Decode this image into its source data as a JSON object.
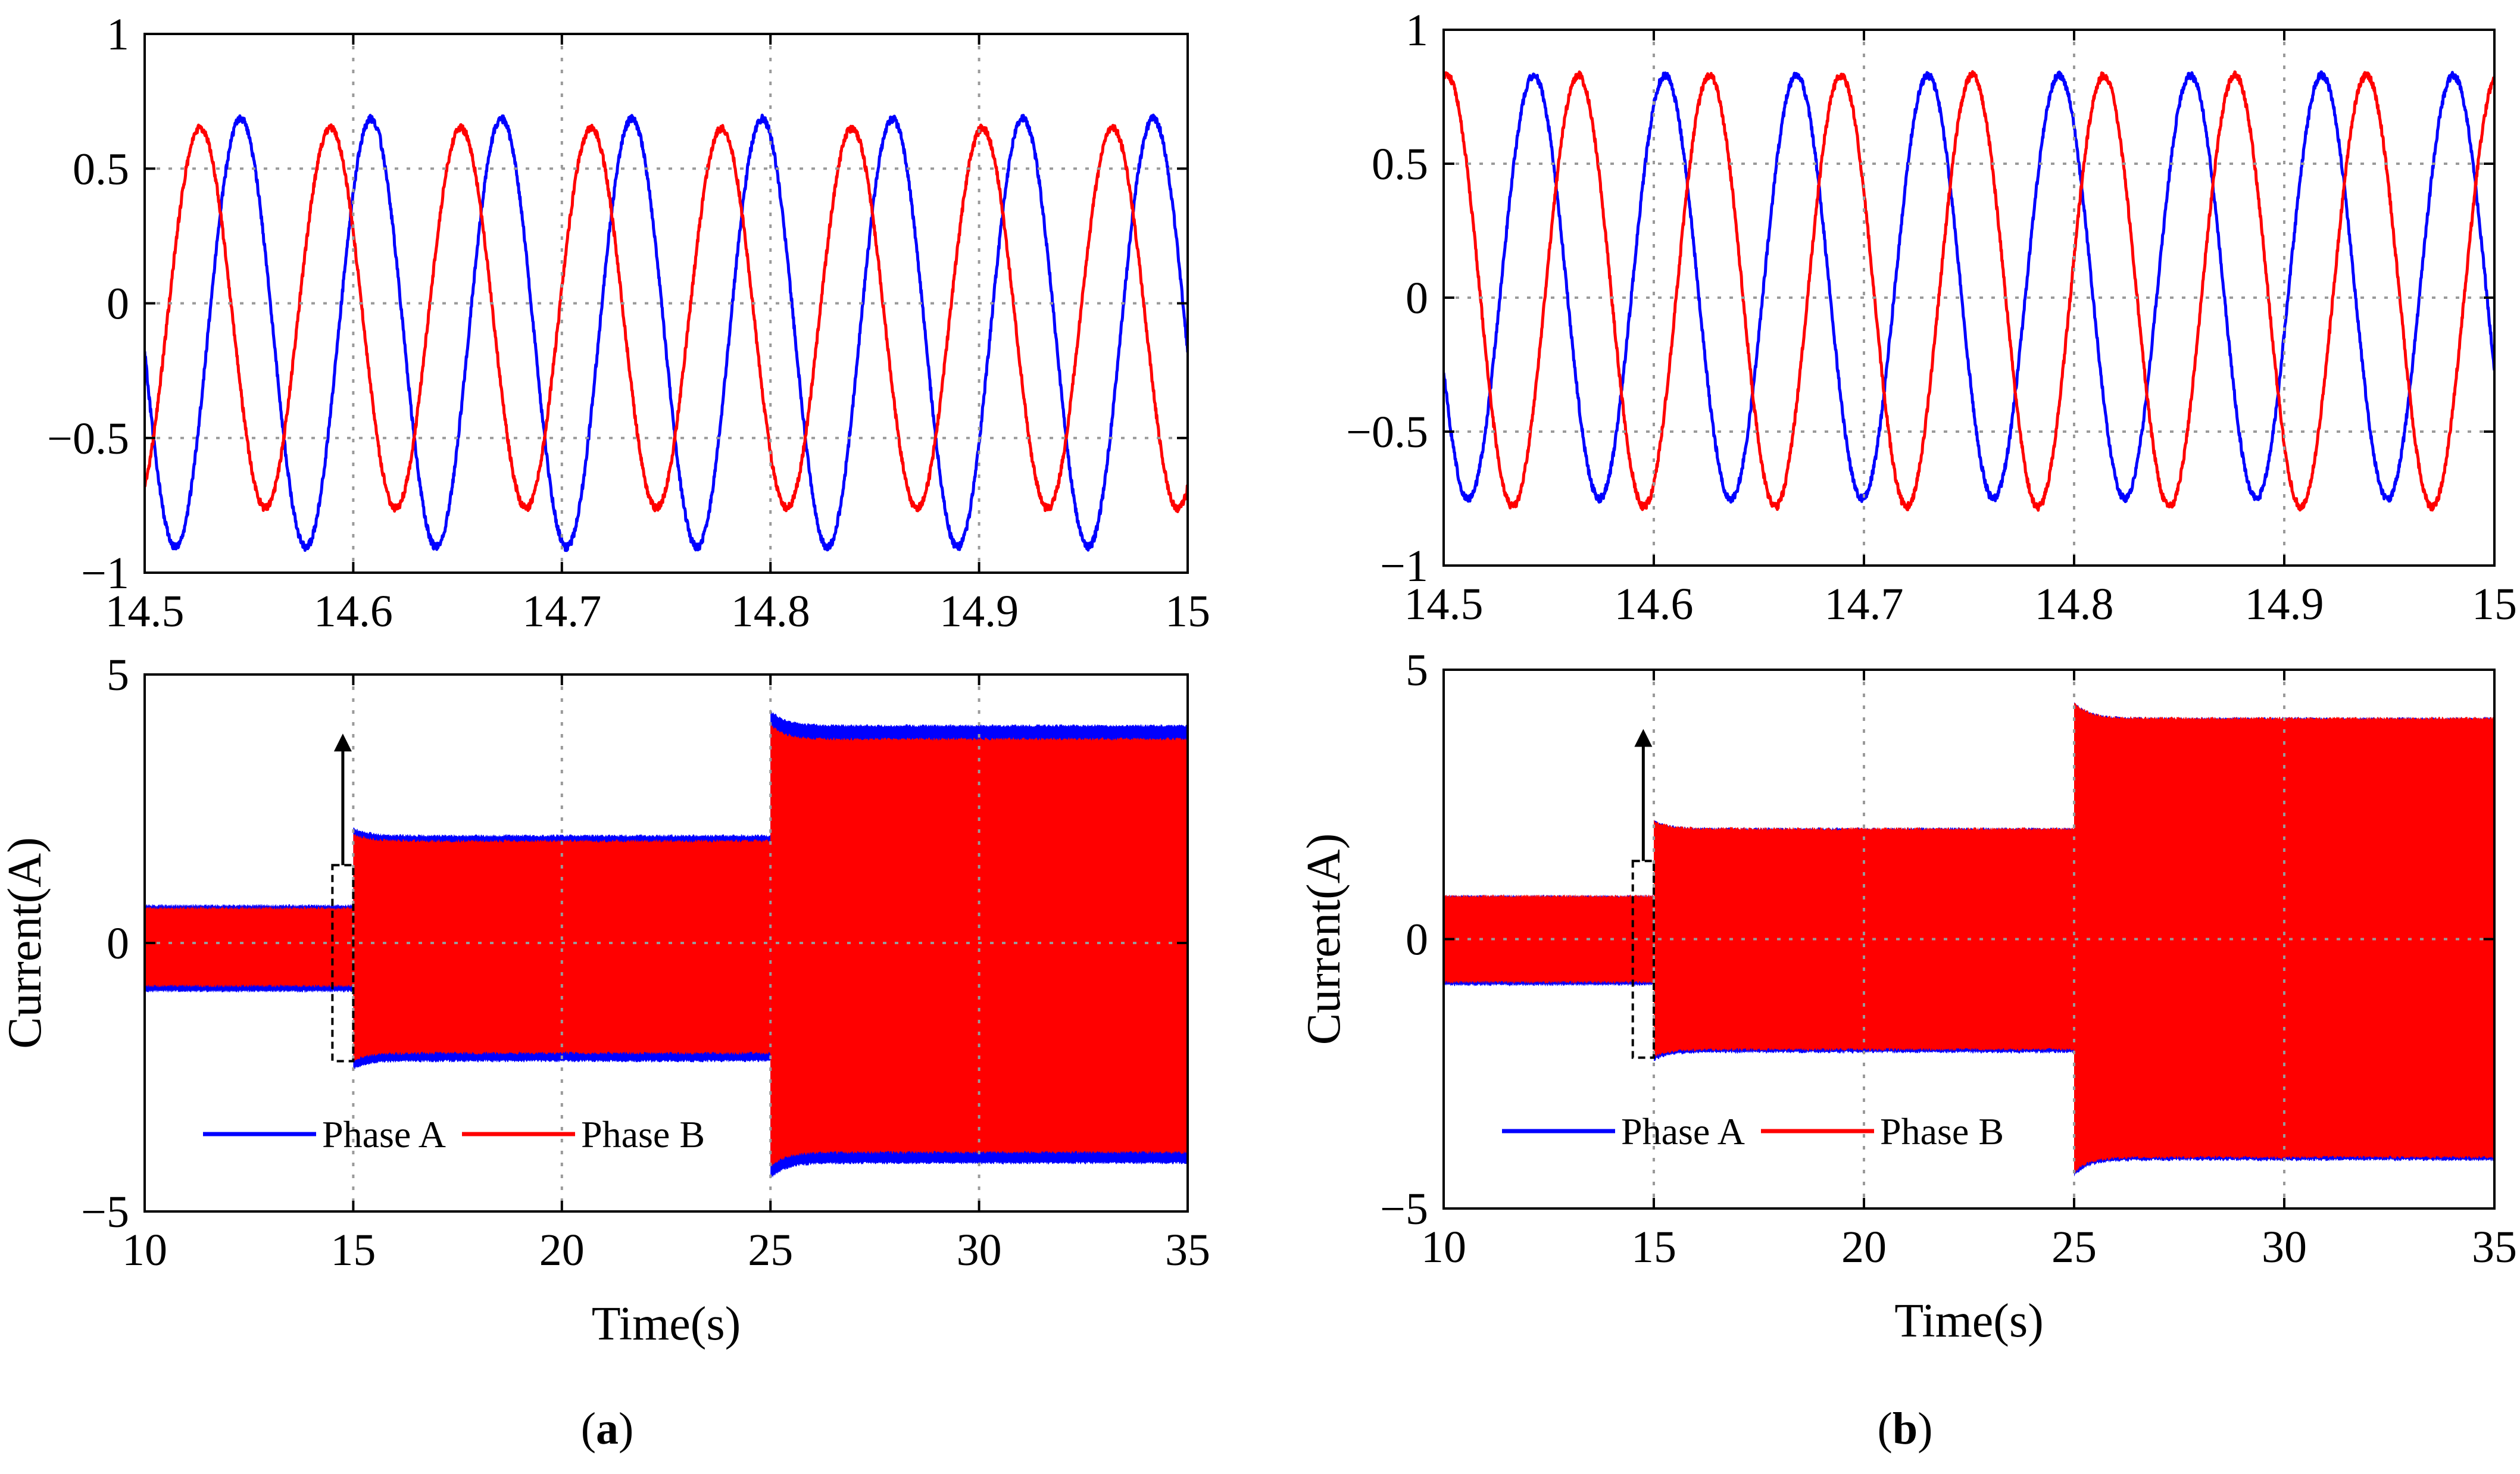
{
  "colors": {
    "phase_a": "#0000ff",
    "phase_b": "#ff0000"
  },
  "chart_data": [
    {
      "type": "line",
      "panel": "a",
      "subplot": "zoom",
      "title": "",
      "xlabel": "",
      "ylabel": "",
      "xlim": [
        14.5,
        15
      ],
      "ylim": [
        -1,
        1
      ],
      "xticks": [
        14.5,
        14.6,
        14.7,
        14.8,
        14.9,
        15
      ],
      "xtick_labels": [
        "14.5",
        "14.6",
        "14.7",
        "14.8",
        "14.9",
        "15"
      ],
      "yticks": [
        1,
        0.5,
        0,
        -0.5,
        -1
      ],
      "ytick_labels": [
        "1",
        "0.5",
        "0",
        "−0.5",
        "−1"
      ],
      "grid": true,
      "series": [
        {
          "name": "Phase A",
          "color": "#0000ff",
          "kind": "sine",
          "frequency_hz": 16,
          "offset": -0.11,
          "amplitude": 0.795,
          "phase_deg": 185
        },
        {
          "name": "Phase B",
          "color": "#ff0000",
          "kind": "sine",
          "frequency_hz": 16,
          "offset": -0.055,
          "amplitude": 0.705,
          "phase_deg": 297
        }
      ]
    },
    {
      "type": "area",
      "panel": "a",
      "subplot": "full",
      "title": "",
      "xlabel": "Time(s)",
      "ylabel": "Current(A)",
      "xlim": [
        10,
        35
      ],
      "ylim": [
        -5,
        5
      ],
      "xticks": [
        10,
        15,
        20,
        25,
        30,
        35
      ],
      "xtick_labels": [
        "10",
        "15",
        "20",
        "25",
        "30",
        "35"
      ],
      "yticks": [
        5,
        0,
        -5
      ],
      "ytick_labels": [
        "5",
        "0",
        "−5"
      ],
      "grid": true,
      "series": [
        {
          "name": "Phase A",
          "color": "#0000ff",
          "segments": [
            {
              "t": [
                10,
                15
              ],
              "upper": 0.7,
              "lower": -0.9
            },
            {
              "t": [
                15,
                25
              ],
              "upper": 2.0,
              "lower": -2.2
            },
            {
              "t": [
                25,
                35
              ],
              "upper": 4.05,
              "lower": -4.1
            }
          ]
        },
        {
          "name": "Phase B",
          "color": "#ff0000",
          "segments": [
            {
              "t": [
                10,
                15
              ],
              "upper": 0.65,
              "lower": -0.8
            },
            {
              "t": [
                15,
                25
              ],
              "upper": 1.9,
              "lower": -2.05
            },
            {
              "t": [
                25,
                35
              ],
              "upper": 3.8,
              "lower": -3.9
            }
          ]
        }
      ],
      "zoom_window": {
        "t": [
          14.5,
          15
        ],
        "y": [
          -2.2,
          1.45
        ]
      },
      "arrow": {
        "t": 14.75,
        "y_from": 1.45,
        "y_to": 3.9
      },
      "legend": {
        "placement": "bottom-center",
        "entries": [
          "Phase A",
          "Phase B"
        ]
      }
    },
    {
      "type": "line",
      "panel": "b",
      "subplot": "zoom",
      "title": "",
      "xlabel": "",
      "ylabel": "",
      "xlim": [
        14.5,
        15
      ],
      "ylim": [
        -1,
        1
      ],
      "xticks": [
        14.5,
        14.6,
        14.7,
        14.8,
        14.9,
        15
      ],
      "xtick_labels": [
        "14.5",
        "14.6",
        "14.7",
        "14.8",
        "14.9",
        "15"
      ],
      "yticks": [
        1,
        0.5,
        0,
        -0.5,
        -1
      ],
      "ytick_labels": [
        "1",
        "0.5",
        "0",
        "−0.5",
        "−1"
      ],
      "grid": true,
      "series": [
        {
          "name": "Phase A",
          "color": "#0000ff",
          "kind": "sine",
          "frequency_hz": 16,
          "offset": 0.04,
          "amplitude": 0.79,
          "phase_deg": 203
        },
        {
          "name": "Phase B",
          "color": "#ff0000",
          "kind": "sine",
          "frequency_hz": 16,
          "offset": 0.025,
          "amplitude": 0.805,
          "phase_deg": 81
        }
      ]
    },
    {
      "type": "area",
      "panel": "b",
      "subplot": "full",
      "title": "",
      "xlabel": "Time(s)",
      "ylabel": "Current(A)",
      "xlim": [
        10,
        35
      ],
      "ylim": [
        -5,
        5
      ],
      "xticks": [
        10,
        15,
        20,
        25,
        30,
        35
      ],
      "xtick_labels": [
        "10",
        "15",
        "20",
        "25",
        "30",
        "35"
      ],
      "yticks": [
        5,
        0,
        -5
      ],
      "ytick_labels": [
        "5",
        "0",
        "−5"
      ],
      "grid": true,
      "series": [
        {
          "name": "Phase A",
          "color": "#0000ff",
          "segments": [
            {
              "t": [
                10,
                15
              ],
              "upper": 0.8,
              "lower": -0.85
            },
            {
              "t": [
                15,
                25
              ],
              "upper": 2.05,
              "lower": -2.1
            },
            {
              "t": [
                25,
                35
              ],
              "upper": 4.1,
              "lower": -4.1
            }
          ]
        },
        {
          "name": "Phase B",
          "color": "#ff0000",
          "segments": [
            {
              "t": [
                10,
                15
              ],
              "upper": 0.8,
              "lower": -0.8
            },
            {
              "t": [
                15,
                25
              ],
              "upper": 2.05,
              "lower": -2.05
            },
            {
              "t": [
                25,
                35
              ],
              "upper": 4.1,
              "lower": -4.05
            }
          ]
        }
      ],
      "zoom_window": {
        "t": [
          14.5,
          15
        ],
        "y": [
          -2.2,
          1.45
        ]
      },
      "arrow": {
        "t": 14.75,
        "y_from": 1.45,
        "y_to": 3.9
      },
      "legend": {
        "placement": "bottom-center",
        "entries": [
          "Phase A",
          "Phase B"
        ]
      }
    }
  ],
  "captions": {
    "a": {
      "open": "(",
      "letter": "a",
      "close": ")"
    },
    "b": {
      "open": "(",
      "letter": "b",
      "close": ")"
    }
  }
}
